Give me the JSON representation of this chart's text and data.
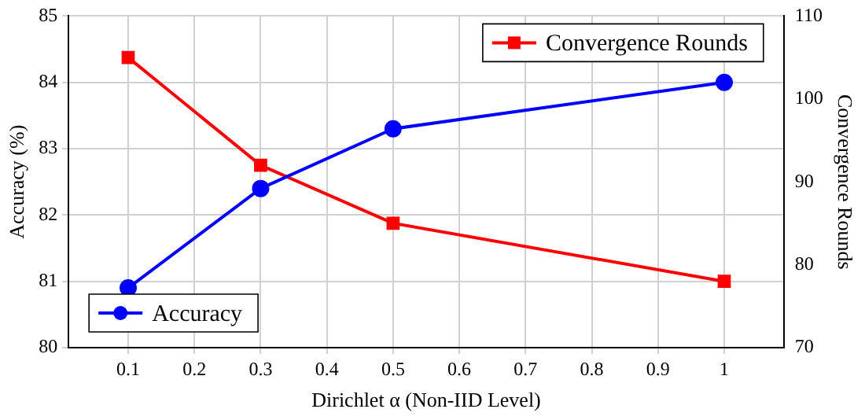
{
  "chart_data": {
    "type": "line",
    "xlabel": "Dirichlet α (Non-IID Level)",
    "ylabel": "Accuracy (%)",
    "y2label": "Convergence Rounds",
    "x": [
      0.1,
      0.3,
      0.5,
      1
    ],
    "series": [
      {
        "name": "Accuracy",
        "color": "#0000ff",
        "marker": "circle",
        "values": [
          80.9,
          82.4,
          83.3,
          84.0
        ]
      },
      {
        "name": "Convergence Rounds",
        "color": "#ff0000",
        "marker": "square",
        "axis": "y2",
        "values": [
          105,
          92,
          85,
          78
        ]
      }
    ],
    "xlim": [
      0.01,
      1.09
    ],
    "xticks": [
      0.1,
      0.2,
      0.3,
      0.4,
      0.5,
      0.6,
      0.7,
      0.8,
      0.9,
      1
    ],
    "ylim": [
      80,
      85
    ],
    "yticks": [
      80,
      81,
      82,
      83,
      84,
      85
    ],
    "y2lim": [
      70,
      110
    ],
    "y2ticks": [
      70,
      80,
      90,
      100,
      110
    ],
    "grid": true,
    "legend": "top right"
  }
}
